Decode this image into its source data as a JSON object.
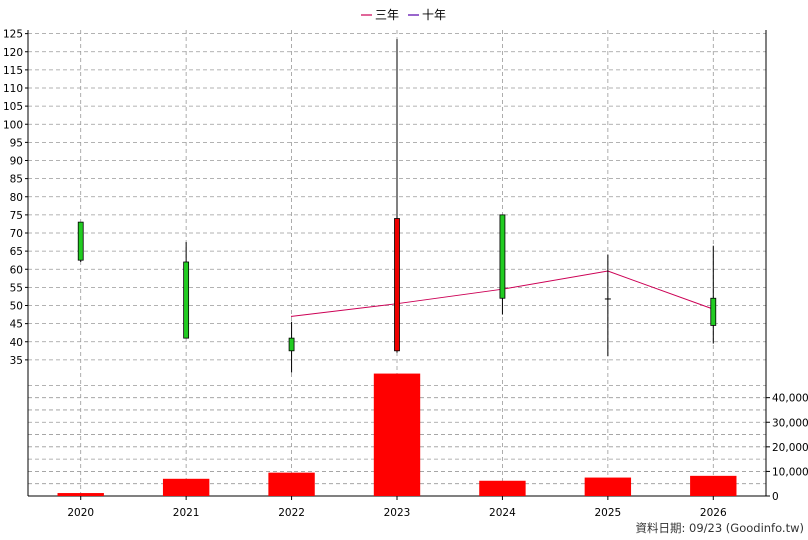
{
  "chart_data": {
    "type": "candlestick",
    "legend": [
      {
        "label": "三年",
        "color": "#cc0055"
      },
      {
        "label": "十年",
        "color": "#5500aa"
      }
    ],
    "categories": [
      "2020",
      "2021",
      "2022",
      "2023",
      "2024",
      "2025",
      "2026"
    ],
    "price_axis": {
      "ylim": [
        30,
        126
      ],
      "ticks": [
        "35",
        "40",
        "45",
        "50",
        "55",
        "60",
        "65",
        "70",
        "75",
        "80",
        "85",
        "90",
        "95",
        "100",
        "105",
        "110",
        "115",
        "120",
        "125"
      ]
    },
    "candles": [
      {
        "year": "2020",
        "open": 62.5,
        "close": 73.0,
        "high": 73.0,
        "low": 62.0,
        "color": "#22cc22"
      },
      {
        "year": "2021",
        "open": 62.0,
        "close": 41.0,
        "high": 67.5,
        "low": 41.0,
        "color": "#22cc22"
      },
      {
        "year": "2022",
        "open": 41.0,
        "close": 37.5,
        "high": 45.5,
        "low": 31.5,
        "color": "#22cc22"
      },
      {
        "year": "2023",
        "open": 37.5,
        "close": 74.0,
        "high": 123.5,
        "low": 37.0,
        "color": "#ee0000"
      },
      {
        "year": "2024",
        "open": 75.0,
        "close": 52.0,
        "high": 75.0,
        "low": 47.5,
        "color": "#22cc22"
      },
      {
        "year": "2025",
        "open": 51.8,
        "close": 51.8,
        "high": 64.0,
        "low": 36.0,
        "color": "#000000"
      },
      {
        "year": "2026",
        "open": 52.0,
        "close": 44.5,
        "high": 66.5,
        "low": 39.5,
        "color": "#22cc22"
      }
    ],
    "three_year_line": {
      "color": "#cc0055",
      "points": [
        {
          "year": "2022",
          "value": 47.0
        },
        {
          "year": "2023",
          "value": 50.5
        },
        {
          "year": "2024",
          "value": 54.5
        },
        {
          "year": "2025",
          "value": 59.5
        },
        {
          "year": "2026",
          "value": 49.0
        }
      ]
    },
    "volume_axis": {
      "ylim": [
        0,
        48000
      ],
      "ticks": [
        "0",
        "10,000",
        "20,000",
        "30,000",
        "40,000"
      ]
    },
    "volume": {
      "color": "#ff0000",
      "values": [
        1200,
        7000,
        9500,
        49800,
        6200,
        7500,
        8200
      ]
    },
    "grid": true
  },
  "footer": {
    "source": "資料日期: 09/23  (Goodinfo.tw)"
  }
}
